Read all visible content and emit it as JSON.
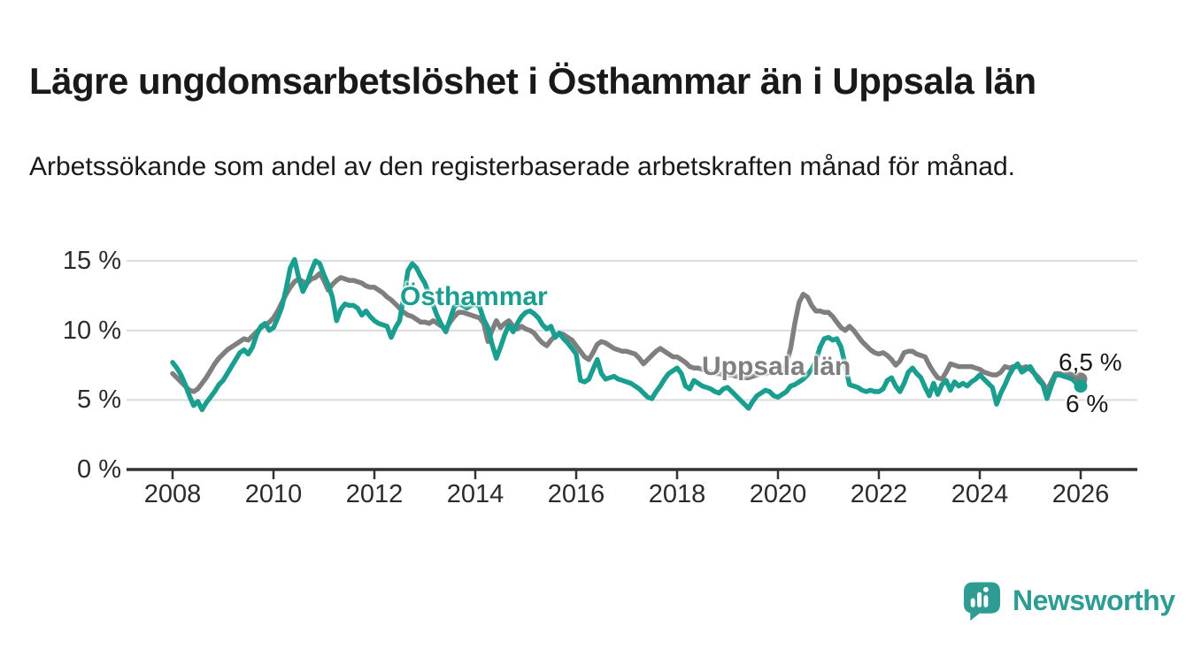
{
  "header": {
    "title": "Lägre ungdomsarbetslöshet i Östhammar än i Uppsala län",
    "subtitle": "Arbetssökande som andel av den registerbaserade arbetskraften månad för månad."
  },
  "footer": {
    "brand": "Newsworthy",
    "brand_color": "#2f9c94",
    "logo_icon": "speech-bubble-bar-chart-icon"
  },
  "chart_data": {
    "type": "line",
    "x_unit": "year (monthly data points)",
    "x_start": "2008-01",
    "x_end": "2026-01",
    "x_ticks": [
      2008,
      2010,
      2012,
      2014,
      2016,
      2018,
      2020,
      2022,
      2024,
      2026
    ],
    "y_ticks": [
      15,
      10,
      5,
      0
    ],
    "y_tick_labels": [
      "15 %",
      "10 %",
      "5 %",
      "0 %"
    ],
    "ylim": [
      0,
      16
    ],
    "grid": "horizontal-only",
    "grid_color": "#dcdcdc",
    "axis_color": "#333333",
    "legend_position": "inline-labels-on-chart",
    "series": [
      {
        "name": "Uppsala län",
        "color": "#7f7f7f",
        "end_value_label": "6,5 %",
        "values": [
          6.9,
          6.6,
          6.3,
          6.0,
          5.7,
          5.6,
          5.8,
          6.2,
          6.6,
          7.1,
          7.6,
          8.0,
          8.3,
          8.6,
          8.8,
          9.0,
          9.2,
          9.4,
          9.3,
          9.6,
          9.9,
          10.2,
          10.4,
          10.6,
          10.9,
          11.4,
          12.0,
          12.6,
          13.1,
          13.5,
          13.7,
          13.5,
          13.4,
          13.7,
          13.8,
          14.1,
          13.6,
          12.9,
          13.3,
          13.6,
          13.8,
          13.7,
          13.6,
          13.6,
          13.5,
          13.4,
          13.2,
          13.1,
          13.1,
          12.9,
          12.7,
          12.4,
          12.2,
          11.9,
          11.6,
          11.3,
          11.1,
          11.0,
          10.8,
          10.6,
          10.6,
          10.5,
          10.7,
          10.5,
          10.3,
          10.1,
          10.6,
          11.0,
          11.3,
          11.3,
          11.2,
          11.1,
          11.0,
          10.9,
          10.5,
          9.2,
          10.0,
          10.7,
          10.2,
          10.5,
          10.7,
          10.3,
          10.1,
          10.3,
          10.1,
          10.0,
          9.8,
          9.4,
          9.1,
          8.9,
          9.3,
          9.6,
          9.8,
          9.7,
          9.5,
          9.3,
          8.9,
          8.5,
          8.1,
          7.9,
          8.4,
          9.0,
          9.2,
          9.1,
          8.9,
          8.7,
          8.6,
          8.5,
          8.5,
          8.4,
          8.3,
          8.0,
          7.6,
          7.9,
          8.2,
          8.5,
          8.7,
          8.5,
          8.3,
          8.1,
          8.1,
          7.9,
          7.7,
          7.4,
          7.3,
          7.3,
          7.2,
          7.1,
          7.0,
          6.9,
          6.9,
          6.8,
          6.8,
          6.8,
          6.7,
          6.7,
          6.6,
          6.6,
          6.7,
          6.8,
          6.9,
          6.9,
          7.0,
          7.0,
          7.0,
          7.1,
          7.6,
          8.7,
          10.5,
          12.0,
          12.6,
          12.4,
          11.8,
          11.4,
          11.4,
          11.3,
          11.3,
          11.0,
          10.6,
          10.2,
          10.0,
          10.3,
          10.0,
          9.6,
          9.2,
          8.9,
          8.6,
          8.4,
          8.3,
          8.4,
          8.2,
          7.9,
          7.5,
          7.8,
          8.4,
          8.5,
          8.5,
          8.3,
          8.2,
          8.1,
          7.5,
          7.0,
          6.6,
          6.5,
          7.0,
          7.6,
          7.5,
          7.4,
          7.4,
          7.4,
          7.4,
          7.3,
          7.2,
          7.0,
          6.9,
          6.8,
          6.8,
          7.0,
          7.4,
          7.3,
          7.4,
          7.4,
          7.3,
          7.4,
          7.2,
          6.9,
          6.6,
          6.2,
          5.7,
          6.3,
          6.9,
          6.9,
          6.8,
          6.9,
          6.8,
          6.6,
          6.5
        ]
      },
      {
        "name": "Östhammar",
        "color": "#1a9e8f",
        "end_value_label": "6 %",
        "values": [
          7.7,
          7.3,
          6.8,
          6.1,
          5.3,
          4.6,
          4.9,
          4.3,
          4.8,
          5.2,
          5.6,
          6.1,
          6.4,
          6.9,
          7.4,
          7.9,
          8.4,
          8.6,
          8.3,
          8.8,
          9.7,
          10.3,
          10.5,
          10.0,
          10.2,
          10.9,
          11.7,
          13.0,
          14.5,
          15.1,
          13.8,
          12.8,
          13.4,
          14.3,
          15.0,
          14.8,
          14.0,
          13.3,
          12.4,
          10.7,
          11.5,
          11.9,
          11.8,
          11.8,
          11.6,
          11.1,
          11.4,
          11.0,
          10.7,
          10.5,
          10.4,
          10.3,
          9.5,
          10.2,
          10.7,
          12.5,
          14.3,
          14.8,
          14.5,
          13.9,
          13.4,
          12.6,
          11.8,
          11.0,
          10.4,
          9.9,
          10.8,
          11.7,
          11.9,
          11.8,
          11.6,
          11.8,
          11.9,
          11.7,
          10.8,
          10.2,
          9.0,
          8.0,
          8.8,
          9.7,
          10.4,
          9.9,
          10.5,
          11.0,
          11.3,
          11.4,
          11.2,
          10.9,
          10.4,
          10.1,
          10.3,
          9.5,
          9.8,
          9.4,
          9.1,
          8.7,
          8.3,
          6.4,
          6.3,
          6.5,
          7.2,
          7.9,
          6.9,
          6.5,
          6.6,
          6.7,
          6.5,
          6.4,
          6.3,
          6.2,
          6.0,
          5.8,
          5.5,
          5.2,
          5.1,
          5.6,
          6.0,
          6.5,
          6.9,
          7.1,
          7.3,
          6.9,
          6.0,
          5.8,
          6.4,
          6.2,
          6.0,
          5.9,
          5.8,
          5.6,
          5.5,
          5.8,
          5.9,
          5.6,
          5.3,
          5.0,
          4.7,
          4.4,
          4.9,
          5.3,
          5.5,
          5.7,
          5.6,
          5.3,
          5.2,
          5.4,
          5.6,
          6.0,
          6.1,
          6.3,
          6.5,
          6.8,
          7.2,
          7.8,
          8.8,
          9.4,
          9.5,
          9.3,
          9.4,
          8.8,
          7.5,
          6.1,
          6.0,
          5.9,
          5.7,
          5.6,
          5.7,
          5.6,
          5.6,
          5.8,
          6.4,
          6.6,
          6.0,
          5.6,
          6.2,
          7.0,
          7.3,
          6.9,
          6.6,
          5.9,
          5.3,
          6.2,
          5.4,
          6.1,
          6.4,
          5.7,
          6.3,
          6.0,
          6.2,
          6.0,
          6.3,
          6.5,
          6.8,
          6.5,
          6.2,
          5.9,
          4.7,
          5.5,
          6.1,
          6.8,
          7.3,
          7.6,
          7.0,
          7.2,
          7.4,
          6.9,
          6.4,
          6.1,
          5.1,
          6.0,
          6.8,
          6.8,
          6.7,
          6.6,
          6.5,
          6.2,
          6.0
        ]
      }
    ]
  }
}
